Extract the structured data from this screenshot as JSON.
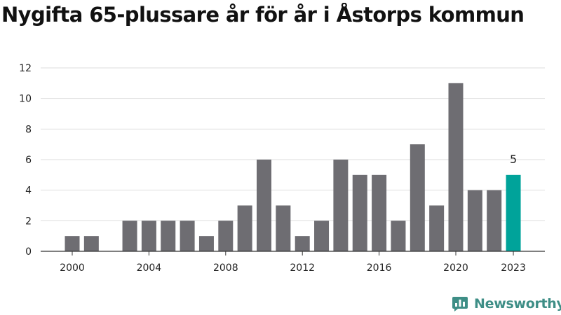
{
  "chart_data": {
    "type": "bar",
    "title": "Nygifta 65-plussare år för år i Åstorps kommun",
    "xlabel": "",
    "ylabel": "",
    "categories": [
      "2000",
      "2001",
      "2002",
      "2003",
      "2004",
      "2005",
      "2006",
      "2007",
      "2008",
      "2009",
      "2010",
      "2011",
      "2012",
      "2013",
      "2014",
      "2015",
      "2016",
      "2017",
      "2018",
      "2019",
      "2020",
      "2021",
      "2022",
      "2023"
    ],
    "values": [
      1,
      1,
      0,
      2,
      2,
      2,
      2,
      1,
      2,
      3,
      6,
      3,
      1,
      2,
      6,
      5,
      5,
      2,
      7,
      3,
      11,
      4,
      4,
      5
    ],
    "ylim": [
      0,
      12
    ],
    "y_ticks": [
      "0",
      "2",
      "4",
      "6",
      "8",
      "10",
      "12"
    ],
    "x_tick_labels": [
      "2000",
      "2004",
      "2008",
      "2012",
      "2016",
      "2020",
      "2023"
    ],
    "highlight_category": "2023",
    "highlight_label": "5",
    "grid": true,
    "legend": "none",
    "colors": {
      "bar": "#6e6d72",
      "highlight": "#00a39a",
      "grid": "#dddddd",
      "axis": "#333333"
    }
  },
  "brand": {
    "name": "Newsworthy",
    "icon": "newsworthy-logo-icon",
    "color": "#3e8e86"
  }
}
